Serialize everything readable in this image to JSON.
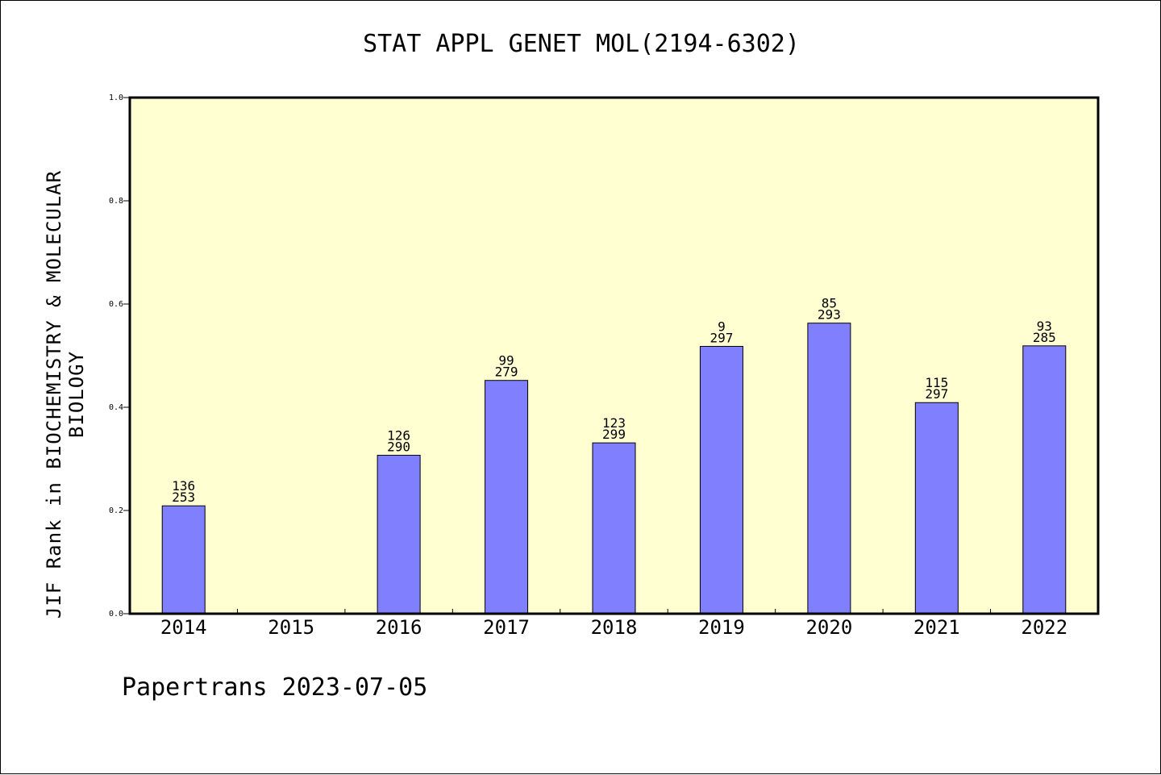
{
  "title": "STAT APPL GENET MOL(2194-6302)",
  "footer": "Papertrans 2023-07-05",
  "colors": {
    "plot_background": "#ffffd2",
    "bar": "#8080ff",
    "axis": "#000000"
  },
  "chart_data": {
    "type": "bar",
    "title": "STAT APPL GENET MOL(2194-6302)",
    "xlabel": "",
    "ylabel": "JIF Rank in BIOCHEMISTRY & MOLECULAR BIOLOGY",
    "ylim": [
      0,
      1.0
    ],
    "yticks": [
      "0.0",
      "0.2",
      "0.4",
      "0.6",
      "0.8",
      "1.0"
    ],
    "categories": [
      "2014",
      "2015",
      "2016",
      "2017",
      "2018",
      "2019",
      "2020",
      "2021",
      "2022"
    ],
    "values": [
      0.209,
      null,
      0.307,
      0.452,
      0.331,
      0.518,
      0.563,
      0.409,
      0.519
    ],
    "rank_labels": [
      [
        "136",
        "253"
      ],
      null,
      [
        "126",
        "290"
      ],
      [
        "99",
        "279"
      ],
      [
        "123",
        "299"
      ],
      [
        "9",
        "297"
      ],
      [
        "85",
        "293"
      ],
      [
        "115",
        "297"
      ],
      [
        "93",
        "285"
      ]
    ],
    "grid": false,
    "legend": "none"
  }
}
